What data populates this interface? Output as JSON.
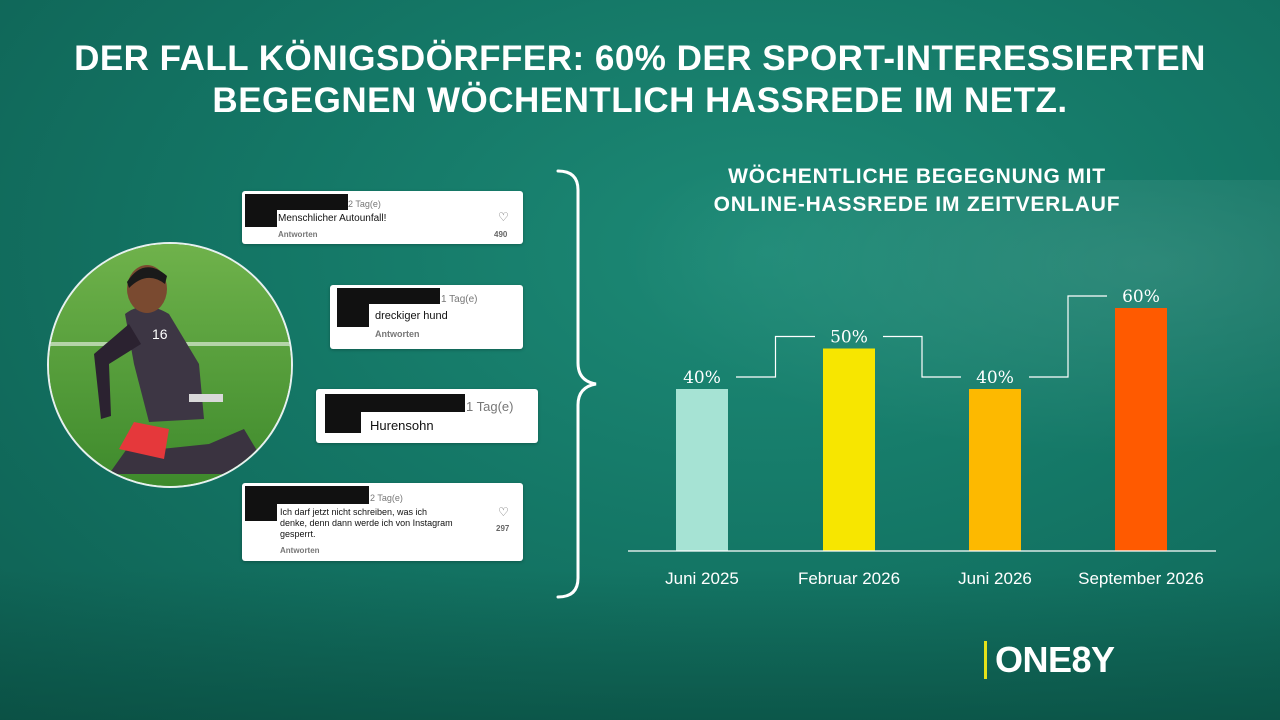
{
  "headline": {
    "line1": "DER FALL KÖNIGSDÖRFFER: 60% DER SPORT-INTERESSIERTEN",
    "line2": "BEGEGNEN WÖCHENTLICH HASSREDE IM NETZ."
  },
  "comments": [
    {
      "time": "2 Tag(e)",
      "text": "Menschlicher Autounfall!",
      "reply": "Antworten",
      "likes": "490"
    },
    {
      "time": "1 Tag(e)",
      "text": "dreckiger hund",
      "reply": "Antworten"
    },
    {
      "time": "1 Tag(e)",
      "text": "Hurensohn"
    },
    {
      "time": "2 Tag(e)",
      "text_line1": "Ich darf jetzt nicht schreiben, was ich",
      "text_line2": "denke, denn dann werde ich von Instagram",
      "text_line3": "gesperrt.",
      "reply": "Antworten",
      "likes": "297"
    }
  ],
  "chart_data": {
    "type": "bar",
    "title_line1": "WÖCHENTLICHE BEGEGNUNG MIT",
    "title_line2": "ONLINE-HASSREDE IM ZEITVERLAUF",
    "categories": [
      "Juni 2025",
      "Februar 2026",
      "Juni 2026",
      "September 2026"
    ],
    "values": [
      40,
      50,
      40,
      60
    ],
    "value_labels": [
      "40%",
      "50%",
      "40%",
      "60%"
    ],
    "colors": [
      "#a6e3d4",
      "#f7e600",
      "#fdb900",
      "#ff5a00"
    ],
    "ylim": [
      0,
      60
    ],
    "grid": false,
    "legend": "none"
  },
  "logo": {
    "text": "ONE8Y"
  }
}
